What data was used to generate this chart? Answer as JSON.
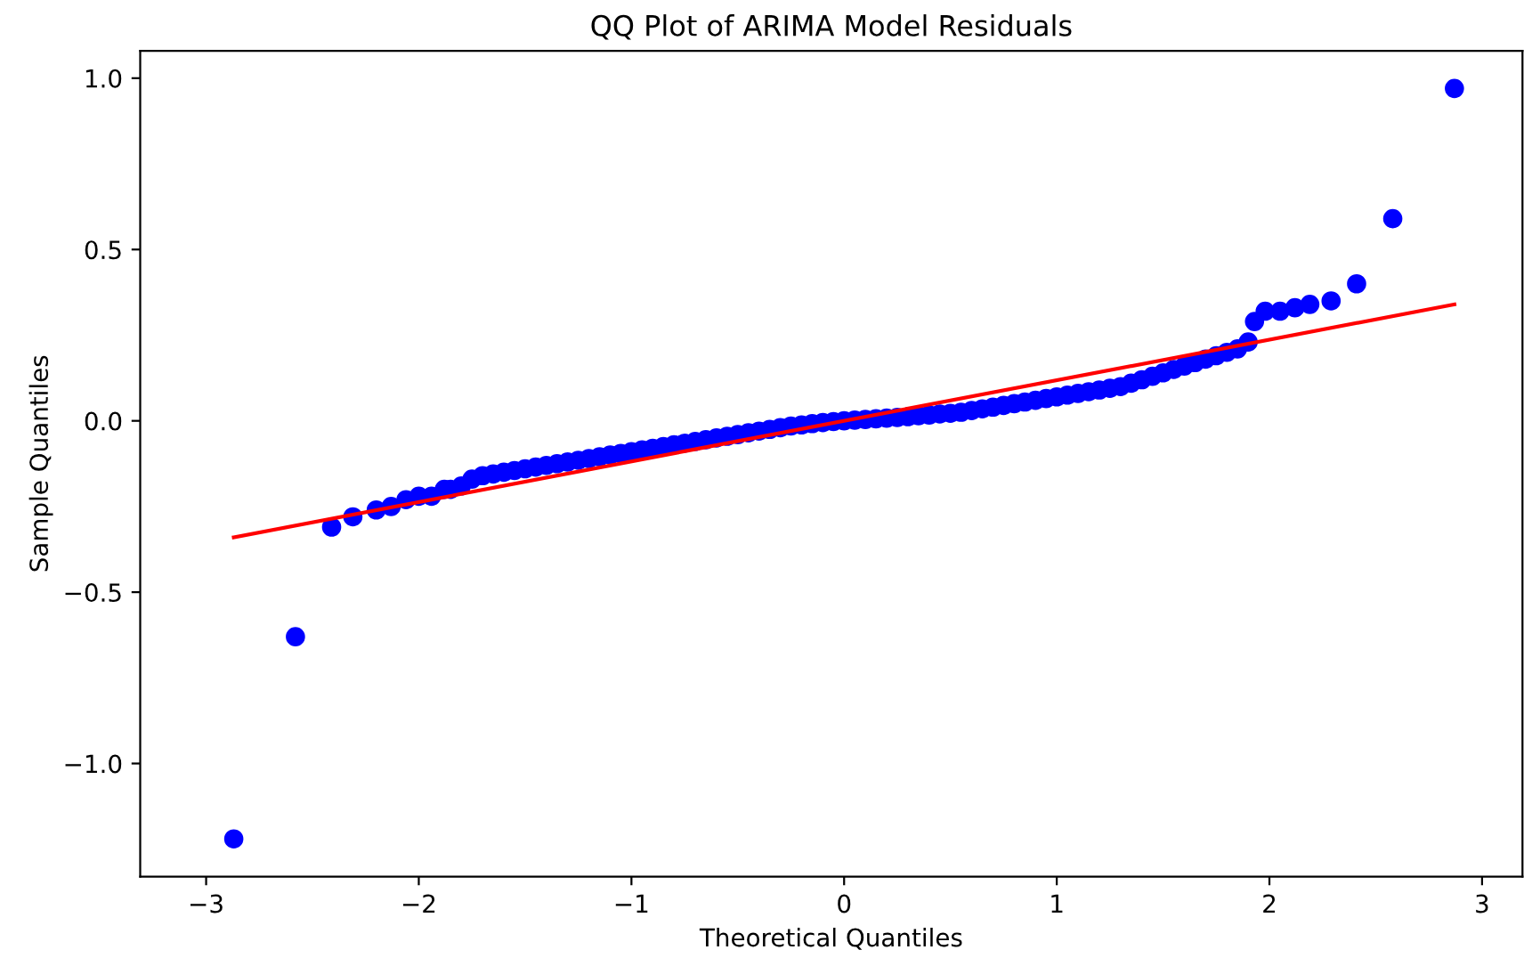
{
  "chart_data": {
    "type": "scatter",
    "title": "QQ Plot of ARIMA Model Residuals",
    "xlabel": "Theoretical Quantiles",
    "ylabel": "Sample Quantiles",
    "xlim": [
      -3.31,
      3.19
    ],
    "ylim": [
      -1.33,
      1.08
    ],
    "xticks": [
      {
        "value": -3,
        "label": "−3"
      },
      {
        "value": -2,
        "label": "−2"
      },
      {
        "value": -1,
        "label": "−1"
      },
      0,
      1,
      2,
      3
    ],
    "yticks": [
      {
        "value": -1.0,
        "label": "−1.0"
      },
      {
        "value": -0.5,
        "label": "−0.5"
      },
      {
        "value": 0.0,
        "label": "0.0"
      },
      {
        "value": 0.5,
        "label": "0.5"
      },
      {
        "value": 1.0,
        "label": "1.0"
      }
    ],
    "grid": false,
    "legend": false,
    "series": [
      {
        "marker": "circle",
        "color": "#0000ff",
        "x": [
          -2.87,
          -2.58,
          -2.41,
          -2.31,
          -2.2,
          -2.13,
          -2.06,
          -2.0,
          -1.94,
          -1.88,
          -1.85,
          -1.8,
          -1.75,
          -1.7,
          -1.65,
          -1.6,
          -1.55,
          -1.5,
          -1.45,
          -1.4,
          -1.35,
          -1.3,
          -1.25,
          -1.2,
          -1.15,
          -1.1,
          -1.05,
          -1.0,
          -0.95,
          -0.9,
          -0.85,
          -0.8,
          -0.75,
          -0.7,
          -0.65,
          -0.6,
          -0.55,
          -0.5,
          -0.45,
          -0.4,
          -0.35,
          -0.3,
          -0.25,
          -0.2,
          -0.15,
          -0.1,
          -0.05,
          0.0,
          0.05,
          0.1,
          0.15,
          0.2,
          0.25,
          0.3,
          0.35,
          0.4,
          0.45,
          0.5,
          0.55,
          0.6,
          0.65,
          0.7,
          0.75,
          0.8,
          0.85,
          0.9,
          0.95,
          1.0,
          1.05,
          1.1,
          1.15,
          1.2,
          1.25,
          1.3,
          1.35,
          1.4,
          1.45,
          1.5,
          1.55,
          1.6,
          1.65,
          1.7,
          1.75,
          1.8,
          1.85,
          1.9,
          1.93,
          1.98,
          2.05,
          2.12,
          2.19,
          2.29,
          2.41,
          2.58,
          2.87
        ],
        "values": [
          -1.22,
          -0.63,
          -0.31,
          -0.28,
          -0.26,
          -0.25,
          -0.23,
          -0.22,
          -0.22,
          -0.2,
          -0.2,
          -0.19,
          -0.17,
          -0.16,
          -0.155,
          -0.15,
          -0.145,
          -0.14,
          -0.135,
          -0.13,
          -0.125,
          -0.12,
          -0.115,
          -0.11,
          -0.105,
          -0.1,
          -0.095,
          -0.09,
          -0.085,
          -0.08,
          -0.075,
          -0.07,
          -0.065,
          -0.06,
          -0.055,
          -0.05,
          -0.045,
          -0.04,
          -0.035,
          -0.03,
          -0.025,
          -0.02,
          -0.015,
          -0.012,
          -0.008,
          -0.005,
          -0.002,
          0.0,
          0.002,
          0.004,
          0.006,
          0.008,
          0.01,
          0.012,
          0.015,
          0.017,
          0.02,
          0.022,
          0.025,
          0.03,
          0.035,
          0.04,
          0.045,
          0.05,
          0.055,
          0.06,
          0.065,
          0.07,
          0.075,
          0.08,
          0.085,
          0.09,
          0.095,
          0.1,
          0.11,
          0.12,
          0.13,
          0.14,
          0.15,
          0.16,
          0.17,
          0.18,
          0.19,
          0.2,
          0.21,
          0.23,
          0.29,
          0.32,
          0.32,
          0.33,
          0.34,
          0.35,
          0.4,
          0.59,
          0.97
        ]
      },
      {
        "type": "line",
        "color": "#ff0000",
        "x": [
          -2.87,
          2.87
        ],
        "values": [
          -0.34,
          0.34
        ]
      }
    ]
  }
}
